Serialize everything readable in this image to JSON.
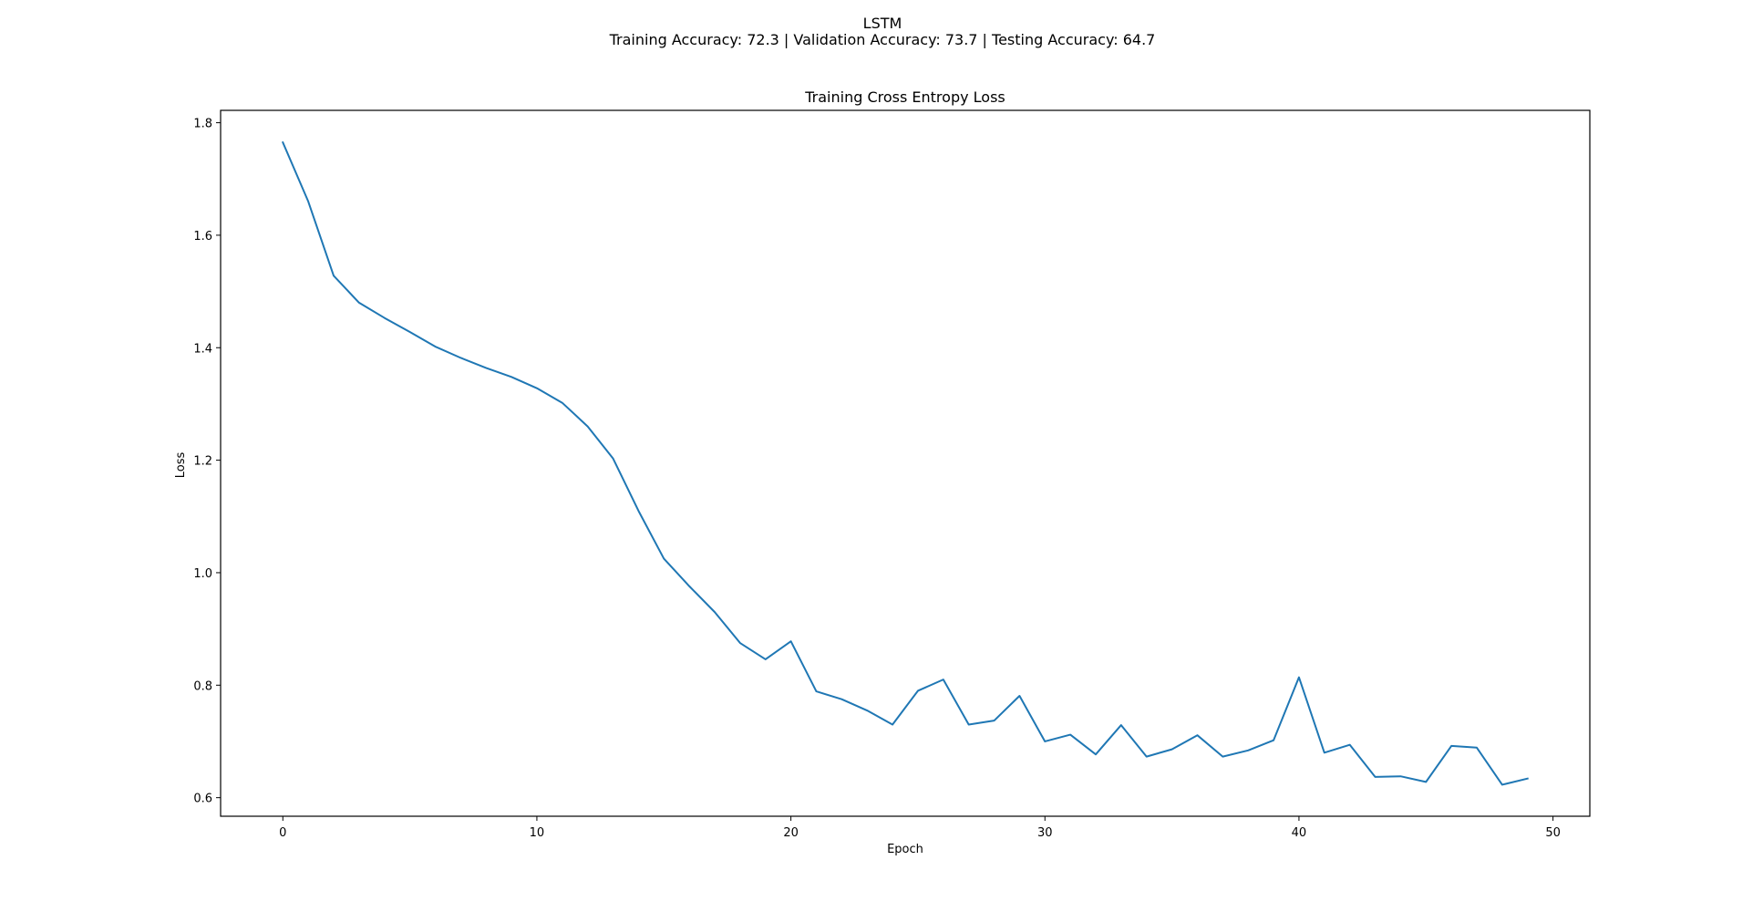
{
  "figure": {
    "suptitle_line1": "LSTM",
    "suptitle_line2": "Training Accuracy: 72.3 | Validation Accuracy: 73.7 | Testing Accuracy: 64.7"
  },
  "chart_data": {
    "type": "line",
    "title": "Training Cross Entropy Loss",
    "xlabel": "Epoch",
    "ylabel": "Loss",
    "xlim": [
      -2.45,
      51.45
    ],
    "ylim": [
      0.567,
      1.822
    ],
    "xticks": [
      0,
      10,
      20,
      30,
      40,
      50
    ],
    "yticks": [
      0.6,
      0.8,
      1.0,
      1.2,
      1.4,
      1.6,
      1.8
    ],
    "grid": false,
    "legend": "none",
    "series": [
      {
        "color": "#1f77b4",
        "x": [
          0,
          1,
          2,
          3,
          4,
          5,
          6,
          7,
          8,
          9,
          10,
          11,
          12,
          13,
          14,
          15,
          16,
          17,
          18,
          19,
          20,
          21,
          22,
          23,
          24,
          25,
          26,
          27,
          28,
          29,
          30,
          31,
          32,
          33,
          34,
          35,
          36,
          37,
          38,
          39,
          40,
          41,
          42,
          43,
          44,
          45,
          46,
          47,
          48,
          49
        ],
        "y": [
          1.765,
          1.66,
          1.528,
          1.48,
          1.453,
          1.428,
          1.402,
          1.382,
          1.364,
          1.348,
          1.328,
          1.302,
          1.26,
          1.203,
          1.11,
          1.025,
          0.976,
          0.93,
          0.875,
          0.846,
          0.878,
          0.789,
          0.775,
          0.755,
          0.73,
          0.79,
          0.81,
          0.73,
          0.737,
          0.781,
          0.7,
          0.712,
          0.677,
          0.729,
          0.673,
          0.686,
          0.711,
          0.673,
          0.684,
          0.702,
          0.814,
          0.68,
          0.694,
          0.637,
          0.638,
          0.628,
          0.692,
          0.689,
          0.623,
          0.634
        ]
      }
    ]
  }
}
